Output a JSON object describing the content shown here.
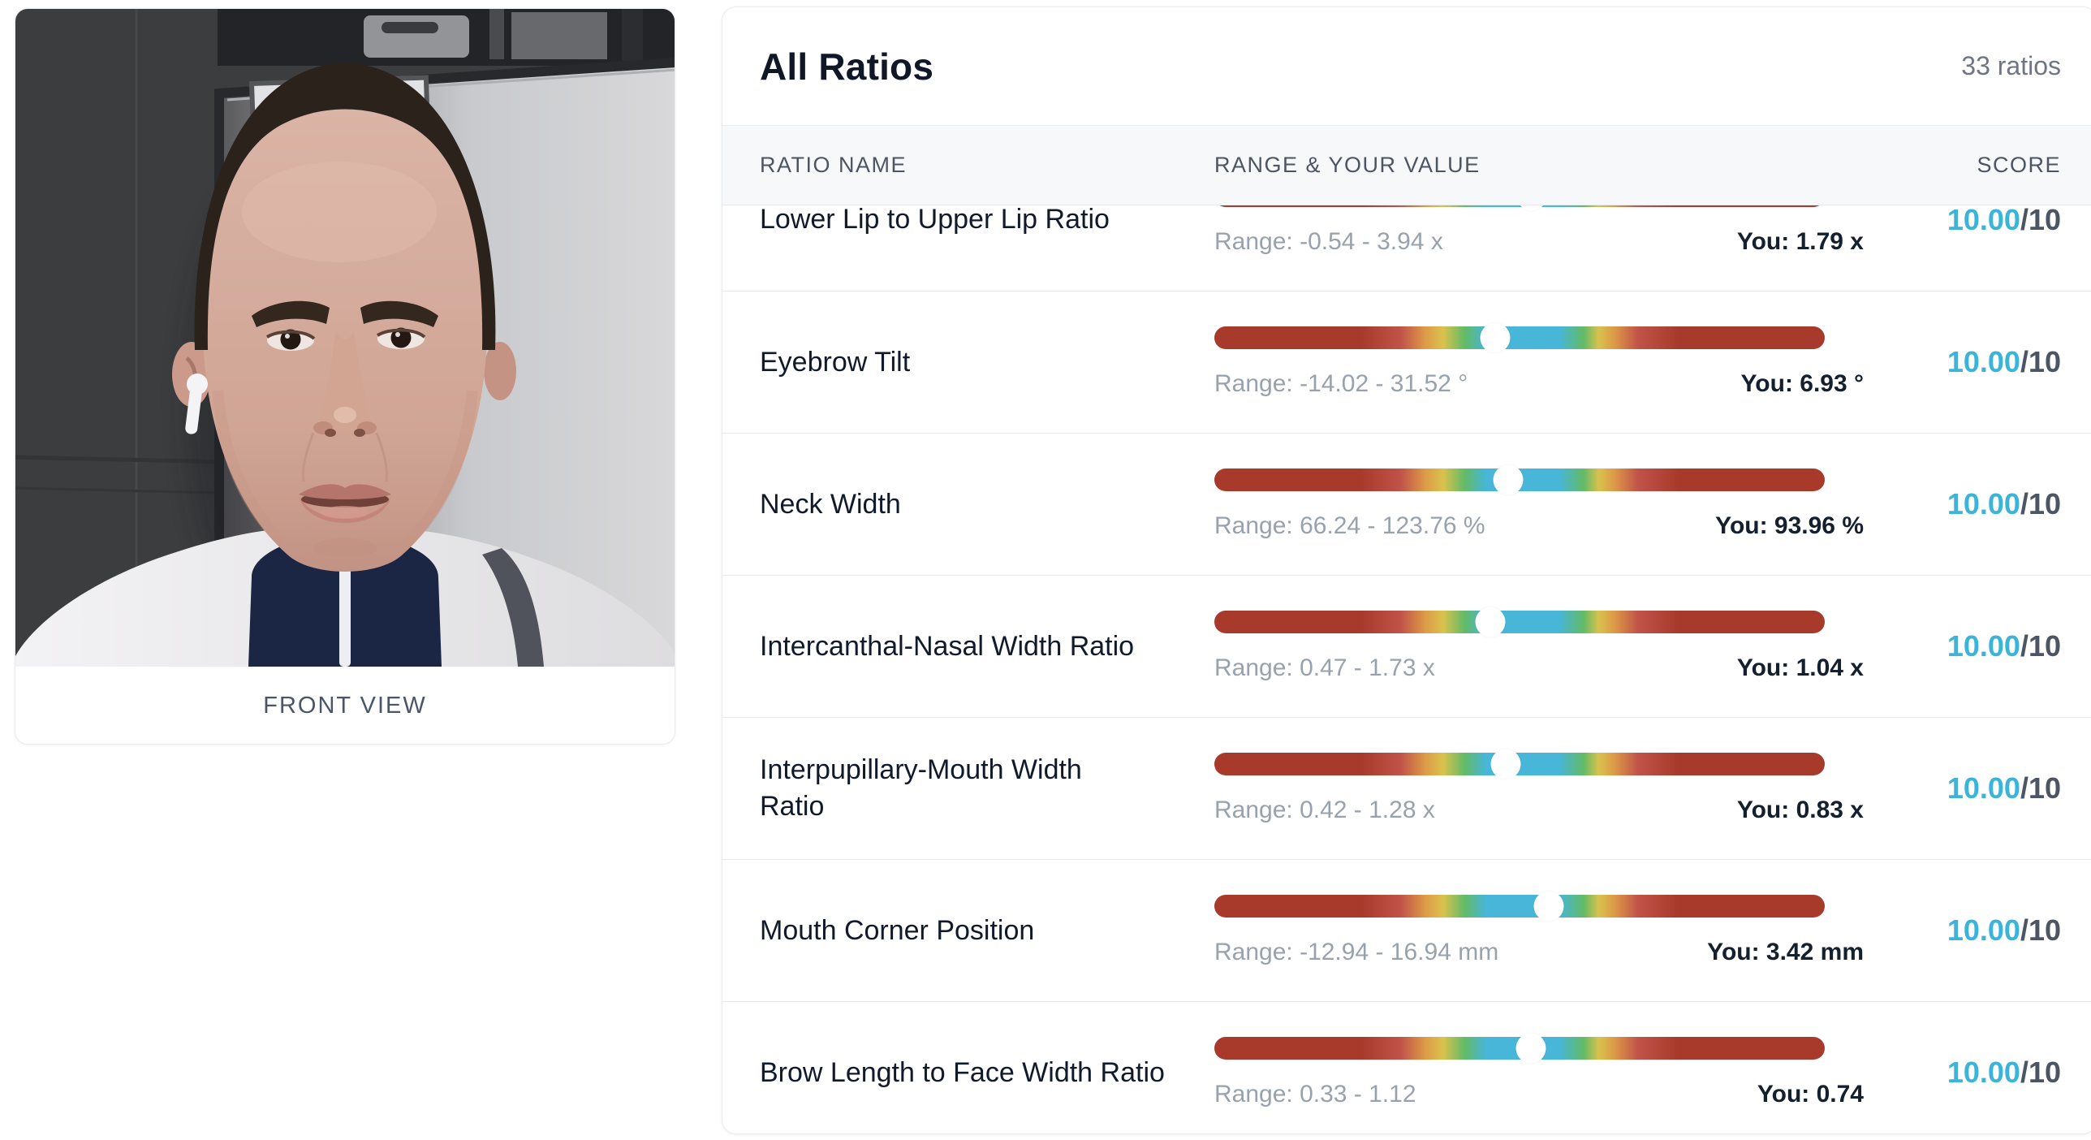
{
  "photo_card": {
    "caption": "FRONT VIEW"
  },
  "ratios_card": {
    "title": "All Ratios",
    "count_label": "33 ratios",
    "columns": [
      "RATIO NAME",
      "RANGE & YOUR VALUE",
      "SCORE"
    ]
  },
  "table": {
    "rows": [
      {
        "name": "Lower Lip to Upper Lip Ratio",
        "range_label": "Range: -0.54 - 3.94 x",
        "you_label": "You: 1.79 x",
        "min": -0.54,
        "max": 3.94,
        "value": 1.79,
        "score": "10.00",
        "score_suffix": "/10",
        "two_line": false,
        "clipped": true
      },
      {
        "name": "Eyebrow Tilt",
        "range_label": "Range: -14.02 - 31.52 °",
        "you_label": "You: 6.93 °",
        "min": -14.02,
        "max": 31.52,
        "value": 6.93,
        "score": "10.00",
        "score_suffix": "/10",
        "two_line": false,
        "clipped": false
      },
      {
        "name": "Neck Width",
        "range_label": "Range: 66.24 - 123.76 %",
        "you_label": "You: 93.96 %",
        "min": 66.24,
        "max": 123.76,
        "value": 93.96,
        "score": "10.00",
        "score_suffix": "/10",
        "two_line": false,
        "clipped": false
      },
      {
        "name": "Intercanthal-Nasal Width Ratio",
        "range_label": "Range: 0.47 - 1.73 x",
        "you_label": "You: 1.04 x",
        "min": 0.47,
        "max": 1.73,
        "value": 1.04,
        "score": "10.00",
        "score_suffix": "/10",
        "two_line": false,
        "clipped": false
      },
      {
        "name": "Interpupillary-Mouth Width Ratio",
        "range_label": "Range: 0.42 - 1.28 x",
        "you_label": "You: 0.83 x",
        "min": 0.42,
        "max": 1.28,
        "value": 0.83,
        "score": "10.00",
        "score_suffix": "/10",
        "two_line": true,
        "clipped": false
      },
      {
        "name": "Mouth Corner Position",
        "range_label": "Range: -12.94 - 16.94 mm",
        "you_label": "You: 3.42 mm",
        "min": -12.94,
        "max": 16.94,
        "value": 3.42,
        "score": "10.00",
        "score_suffix": "/10",
        "two_line": false,
        "clipped": false
      },
      {
        "name": "Brow Length to Face Width Ratio",
        "range_label": "Range: 0.33 - 1.12",
        "you_label": "You: 0.74",
        "min": 0.33,
        "max": 1.12,
        "value": 0.74,
        "score": "10.00",
        "score_suffix": "/10",
        "two_line": false,
        "clipped": false
      }
    ]
  },
  "colors": {
    "score_accent": "#3cb4d9",
    "score_denominator": "#4b5563",
    "bar_end_red": "#a83a2c",
    "bar_orange": "#dd9a47",
    "bar_yellow": "#d9c24e",
    "bar_green": "#62bb67",
    "bar_blue": "#47b6d8",
    "row_name_text": "#111a2b",
    "range_text": "#98a1ae",
    "header_band_bg": "#f7f8fa"
  }
}
